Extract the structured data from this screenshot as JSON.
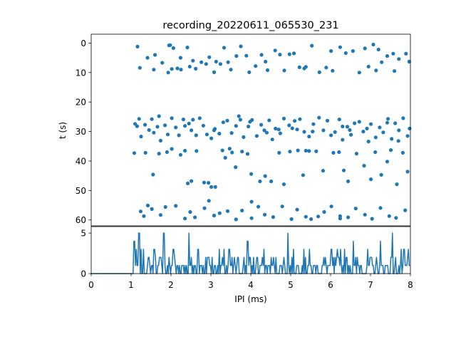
{
  "chart_data": [
    {
      "type": "scatter",
      "title": "recording_20220611_065530_231",
      "xlabel": "",
      "ylabel": "t (s)",
      "xlim": [
        0,
        8
      ],
      "ylim": [
        62,
        -3
      ],
      "y_inverted": true,
      "yticks": [
        0,
        10,
        20,
        30,
        40,
        50,
        60
      ],
      "xticks_shown": false,
      "marker_color": "#1f77b4",
      "marker": "filled-circle",
      "points_estimated": [
        [
          1.16,
          1.2
        ],
        [
          1.22,
          8.4
        ],
        [
          1.41,
          5.0
        ],
        [
          1.6,
          4.0
        ],
        [
          1.57,
          9.0
        ],
        [
          1.78,
          6.7
        ],
        [
          1.93,
          10.0
        ],
        [
          1.95,
          0.8
        ],
        [
          2.02,
          8.8
        ],
        [
          2.06,
          1.7
        ],
        [
          2.16,
          8.6
        ],
        [
          2.25,
          9.0
        ],
        [
          2.41,
          1.5
        ],
        [
          2.47,
          8.0
        ],
        [
          2.55,
          6.0
        ],
        [
          2.62,
          8.7
        ],
        [
          2.76,
          6.5
        ],
        [
          2.88,
          7.1
        ],
        [
          2.96,
          4.8
        ],
        [
          3.08,
          9.9
        ],
        [
          3.13,
          6.3
        ],
        [
          3.24,
          7.1
        ],
        [
          3.33,
          1.6
        ],
        [
          3.43,
          6.5
        ],
        [
          3.5,
          9.0
        ],
        [
          3.64,
          4.4
        ],
        [
          3.75,
          1.1
        ],
        [
          3.89,
          4.3
        ],
        [
          3.96,
          9.9
        ],
        [
          4.12,
          7.8
        ],
        [
          4.27,
          4.0
        ],
        [
          4.37,
          6.3
        ],
        [
          4.42,
          9.2
        ],
        [
          4.61,
          2.5
        ],
        [
          4.73,
          3.9
        ],
        [
          4.84,
          9.3
        ],
        [
          4.97,
          3.8
        ],
        [
          5.08,
          3.5
        ],
        [
          5.22,
          8.2
        ],
        [
          5.38,
          8.1
        ],
        [
          5.53,
          0.9
        ],
        [
          5.72,
          9.9
        ],
        [
          5.89,
          8.3
        ],
        [
          6.01,
          2.7
        ],
        [
          6.05,
          9.4
        ],
        [
          6.24,
          1.4
        ],
        [
          6.38,
          3.4
        ],
        [
          6.56,
          2.7
        ],
        [
          6.72,
          10.0
        ],
        [
          6.86,
          1.8
        ],
        [
          6.95,
          8.0
        ],
        [
          7.07,
          0.5
        ],
        [
          7.14,
          9.3
        ],
        [
          7.28,
          6.5
        ],
        [
          7.42,
          4.4
        ],
        [
          7.57,
          3.6
        ],
        [
          7.6,
          9.5
        ],
        [
          7.71,
          5.4
        ],
        [
          7.89,
          3.6
        ],
        [
          7.97,
          6.3
        ],
        [
          1.98,
          0.7
        ],
        [
          2.24,
          5.0
        ],
        [
          5.34,
          8.6
        ],
        [
          7.2,
          2.2
        ],
        [
          1.08,
          37.3
        ],
        [
          1.15,
          28.2
        ],
        [
          1.2,
          25.7
        ],
        [
          1.25,
          31.7
        ],
        [
          1.35,
          27.7
        ],
        [
          1.45,
          29.5
        ],
        [
          1.52,
          25.8
        ],
        [
          1.57,
          30.4
        ],
        [
          1.66,
          28.4
        ],
        [
          1.74,
          33.1
        ],
        [
          1.85,
          27.9
        ],
        [
          1.92,
          31.0
        ],
        [
          2.02,
          25.5
        ],
        [
          2.12,
          28.6
        ],
        [
          2.2,
          31.3
        ],
        [
          2.31,
          25.9
        ],
        [
          2.45,
          27.3
        ],
        [
          2.51,
          29.6
        ],
        [
          2.63,
          31.3
        ],
        [
          2.72,
          25.5
        ],
        [
          2.81,
          28.0
        ],
        [
          2.9,
          31.0
        ],
        [
          3.01,
          32.3
        ],
        [
          3.1,
          29.1
        ],
        [
          3.21,
          30.7
        ],
        [
          3.31,
          26.9
        ],
        [
          3.41,
          26.3
        ],
        [
          3.52,
          30.5
        ],
        [
          3.63,
          28.1
        ],
        [
          3.74,
          26.0
        ],
        [
          3.82,
          31.9
        ],
        [
          3.94,
          28.3
        ],
        [
          4.03,
          26.1
        ],
        [
          4.15,
          31.5
        ],
        [
          4.26,
          27.7
        ],
        [
          4.34,
          29.6
        ],
        [
          4.46,
          26.2
        ],
        [
          4.54,
          32.7
        ],
        [
          4.62,
          29.0
        ],
        [
          4.74,
          30.6
        ],
        [
          4.83,
          25.6
        ],
        [
          4.96,
          27.9
        ],
        [
          5.04,
          28.9
        ],
        [
          5.16,
          29.3
        ],
        [
          5.23,
          25.8
        ],
        [
          5.34,
          30.1
        ],
        [
          5.46,
          31.7
        ],
        [
          5.57,
          27.5
        ],
        [
          5.71,
          25.3
        ],
        [
          5.82,
          29.6
        ],
        [
          5.92,
          26.3
        ],
        [
          6.01,
          31.3
        ],
        [
          6.11,
          30.2
        ],
        [
          6.22,
          25.9
        ],
        [
          6.3,
          32.8
        ],
        [
          6.42,
          28.4
        ],
        [
          6.51,
          31.1
        ],
        [
          6.6,
          27.2
        ],
        [
          6.72,
          26.7
        ],
        [
          6.82,
          30.0
        ],
        [
          6.91,
          29.0
        ],
        [
          7.01,
          27.5
        ],
        [
          7.13,
          32.0
        ],
        [
          7.23,
          28.6
        ],
        [
          7.32,
          30.3
        ],
        [
          7.44,
          25.7
        ],
        [
          7.53,
          32.5
        ],
        [
          7.62,
          27.2
        ],
        [
          7.71,
          29.6
        ],
        [
          7.82,
          25.5
        ],
        [
          7.93,
          31.5
        ],
        [
          7.98,
          29.0
        ],
        [
          1.1,
          27.4
        ],
        [
          2.55,
          26.0
        ],
        [
          3.7,
          24.8
        ],
        [
          4.4,
          30.4
        ],
        [
          5.1,
          26.4
        ],
        [
          6.3,
          28.3
        ],
        [
          6.95,
          33.4
        ],
        [
          7.7,
          33.2
        ],
        [
          1.7,
          24.8
        ],
        [
          2.35,
          28.1
        ],
        [
          3.08,
          29.6
        ],
        [
          3.98,
          26.7
        ],
        [
          4.7,
          29.3
        ],
        [
          5.55,
          30.0
        ],
        [
          6.48,
          29.5
        ],
        [
          7.42,
          27.0
        ],
        [
          1.36,
          37.2
        ],
        [
          1.55,
          44.6
        ],
        [
          1.7,
          37.5
        ],
        [
          1.9,
          37.0
        ],
        [
          2.02,
          35.9
        ],
        [
          2.24,
          37.9
        ],
        [
          2.35,
          36.5
        ],
        [
          2.42,
          47.6
        ],
        [
          2.51,
          46.8
        ],
        [
          2.64,
          36.6
        ],
        [
          2.83,
          47.3
        ],
        [
          3.01,
          48.8
        ],
        [
          3.11,
          48.8
        ],
        [
          3.29,
          36.4
        ],
        [
          3.36,
          38.9
        ],
        [
          3.47,
          35.8
        ],
        [
          3.53,
          37.1
        ],
        [
          3.62,
          42.1
        ],
        [
          3.78,
          36.8
        ],
        [
          3.92,
          37.6
        ],
        [
          4.01,
          44.4
        ],
        [
          4.23,
          46.9
        ],
        [
          4.36,
          45.1
        ],
        [
          4.51,
          46.9
        ],
        [
          4.71,
          37.2
        ],
        [
          4.83,
          47.9
        ],
        [
          4.98,
          36.8
        ],
        [
          5.18,
          36.4
        ],
        [
          5.31,
          44.8
        ],
        [
          5.46,
          36.6
        ],
        [
          5.64,
          36.7
        ],
        [
          5.81,
          43.3
        ],
        [
          6.07,
          37.2
        ],
        [
          6.21,
          37.0
        ],
        [
          6.33,
          43.2
        ],
        [
          6.44,
          46.9
        ],
        [
          6.65,
          37.5
        ],
        [
          6.84,
          41.6
        ],
        [
          7.01,
          46.2
        ],
        [
          7.12,
          37.0
        ],
        [
          7.27,
          44.7
        ],
        [
          7.42,
          40.2
        ],
        [
          7.51,
          36.3
        ],
        [
          7.66,
          47.9
        ],
        [
          7.81,
          37.2
        ],
        [
          7.93,
          43.6
        ],
        [
          2.94,
          47.4
        ],
        [
          5.38,
          36.5
        ],
        [
          1.24,
          57.1
        ],
        [
          1.32,
          58.7
        ],
        [
          1.52,
          56.3
        ],
        [
          1.74,
          58.3
        ],
        [
          1.86,
          55.6
        ],
        [
          2.12,
          55.2
        ],
        [
          2.35,
          59.5
        ],
        [
          2.48,
          57.3
        ],
        [
          2.6,
          59.1
        ],
        [
          2.84,
          56.0
        ],
        [
          2.95,
          53.5
        ],
        [
          3.08,
          58.5
        ],
        [
          3.22,
          57.7
        ],
        [
          3.42,
          57.0
        ],
        [
          3.63,
          59.8
        ],
        [
          3.78,
          56.8
        ],
        [
          4.02,
          53.8
        ],
        [
          4.19,
          55.5
        ],
        [
          4.35,
          58.2
        ],
        [
          4.56,
          59.0
        ],
        [
          4.79,
          55.4
        ],
        [
          5.02,
          59.7
        ],
        [
          5.16,
          56.5
        ],
        [
          5.38,
          58.9
        ],
        [
          5.51,
          59.7
        ],
        [
          5.69,
          58.8
        ],
        [
          5.84,
          57.3
        ],
        [
          6.02,
          55.4
        ],
        [
          6.24,
          59.5
        ],
        [
          6.44,
          59.1
        ],
        [
          6.63,
          56.1
        ],
        [
          6.86,
          58.2
        ],
        [
          7.04,
          59.6
        ],
        [
          7.25,
          55.9
        ],
        [
          7.47,
          58.7
        ],
        [
          7.64,
          59.3
        ],
        [
          7.87,
          56.7
        ],
        [
          1.42,
          55.1
        ],
        [
          4.02,
          59.4
        ],
        [
          6.24,
          58.7
        ]
      ]
    },
    {
      "type": "line",
      "title": "",
      "xlabel": "IPI (ms)",
      "ylabel": "",
      "xlim": [
        0,
        8
      ],
      "ylim": [
        0,
        5.8
      ],
      "xticks": [
        0,
        1,
        2,
        3,
        4,
        5,
        6,
        7,
        8
      ],
      "yticks": [
        0,
        5
      ],
      "line_color": "#1f77b4",
      "note": "count per IPI bin; values are 0 below ~1.05 ms then fluctuate 0-5",
      "x_start": 1.05,
      "x_end": 8.0,
      "peaks_estimated": [
        [
          1.08,
          4
        ],
        [
          1.2,
          5
        ],
        [
          1.58,
          3
        ],
        [
          1.82,
          5
        ],
        [
          2.06,
          3
        ],
        [
          2.45,
          5
        ],
        [
          2.68,
          3
        ],
        [
          2.92,
          2
        ],
        [
          3.46,
          3
        ],
        [
          3.92,
          4
        ],
        [
          4.15,
          2
        ],
        [
          4.93,
          5
        ],
        [
          5.37,
          2
        ],
        [
          6.02,
          3
        ],
        [
          6.25,
          3
        ],
        [
          6.57,
          4
        ],
        [
          6.93,
          3
        ],
        [
          7.25,
          4
        ],
        [
          7.55,
          5
        ],
        [
          7.95,
          3
        ]
      ]
    }
  ]
}
